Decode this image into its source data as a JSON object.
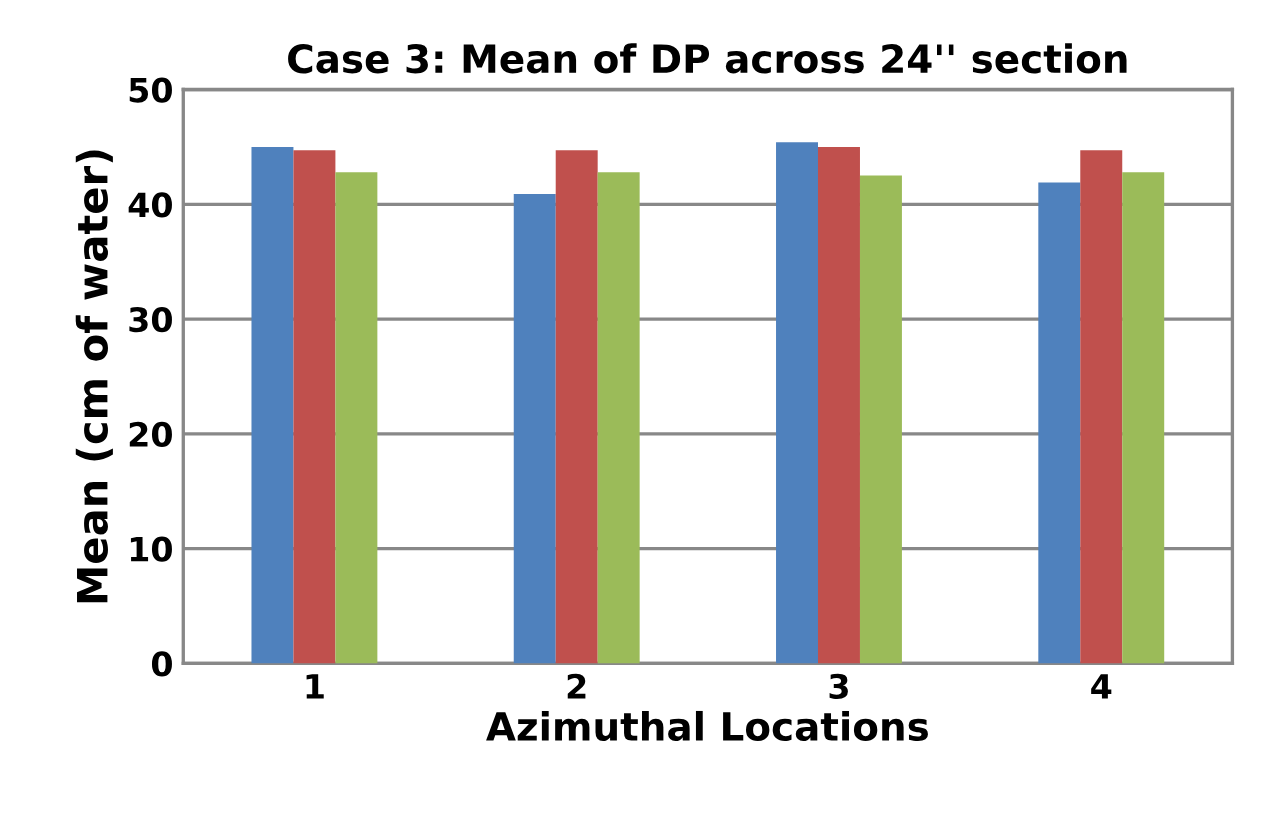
{
  "chart_data": {
    "type": "bar",
    "title": "Case 3: Mean of DP across 24'' section",
    "xlabel": "Azimuthal Locations",
    "ylabel": "Mean (cm of water)",
    "categories": [
      "1",
      "2",
      "3",
      "4"
    ],
    "series": [
      {
        "color": "#4f81bd",
        "values": [
          45.0,
          40.9,
          45.4,
          41.9
        ]
      },
      {
        "color": "#c0504d",
        "values": [
          44.7,
          44.7,
          45.0,
          44.7
        ]
      },
      {
        "color": "#9bbb59",
        "values": [
          42.8,
          42.8,
          42.5,
          42.8
        ]
      }
    ],
    "ylim": [
      0,
      50
    ],
    "yticks": [
      0,
      10,
      20,
      30,
      40,
      50
    ],
    "grid": "y",
    "legend": false
  }
}
